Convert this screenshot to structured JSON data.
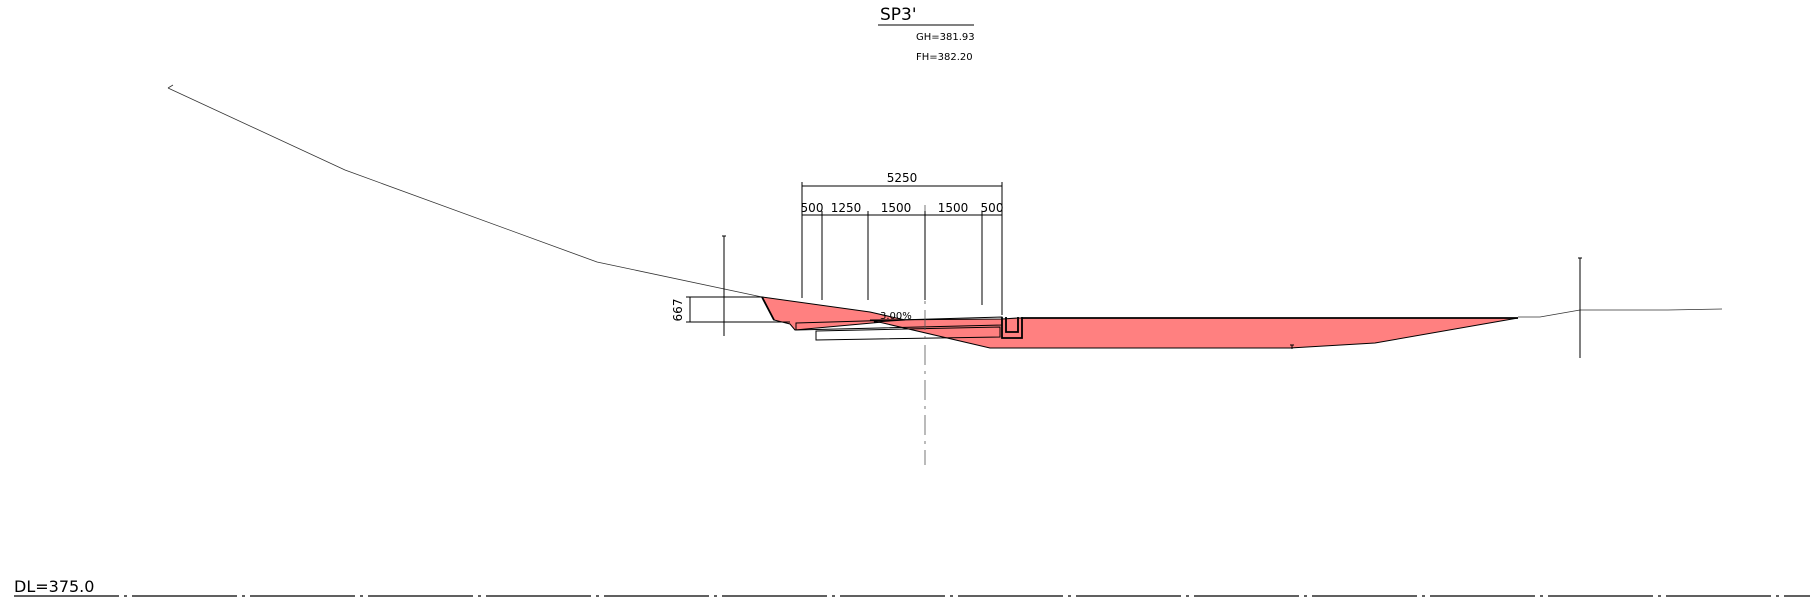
{
  "section": {
    "title": "SP3'",
    "gh_label": "GH=381.93",
    "fh_label": "FH=382.20"
  },
  "dimensions": {
    "overall": "5250",
    "parts": [
      "500",
      "1250",
      "1500",
      "1500",
      "500"
    ],
    "height": "667",
    "slope": "3.00%"
  },
  "datum": {
    "label": "DL=375.0"
  },
  "colors": {
    "fill": "#ff8080",
    "line": "#000000"
  }
}
